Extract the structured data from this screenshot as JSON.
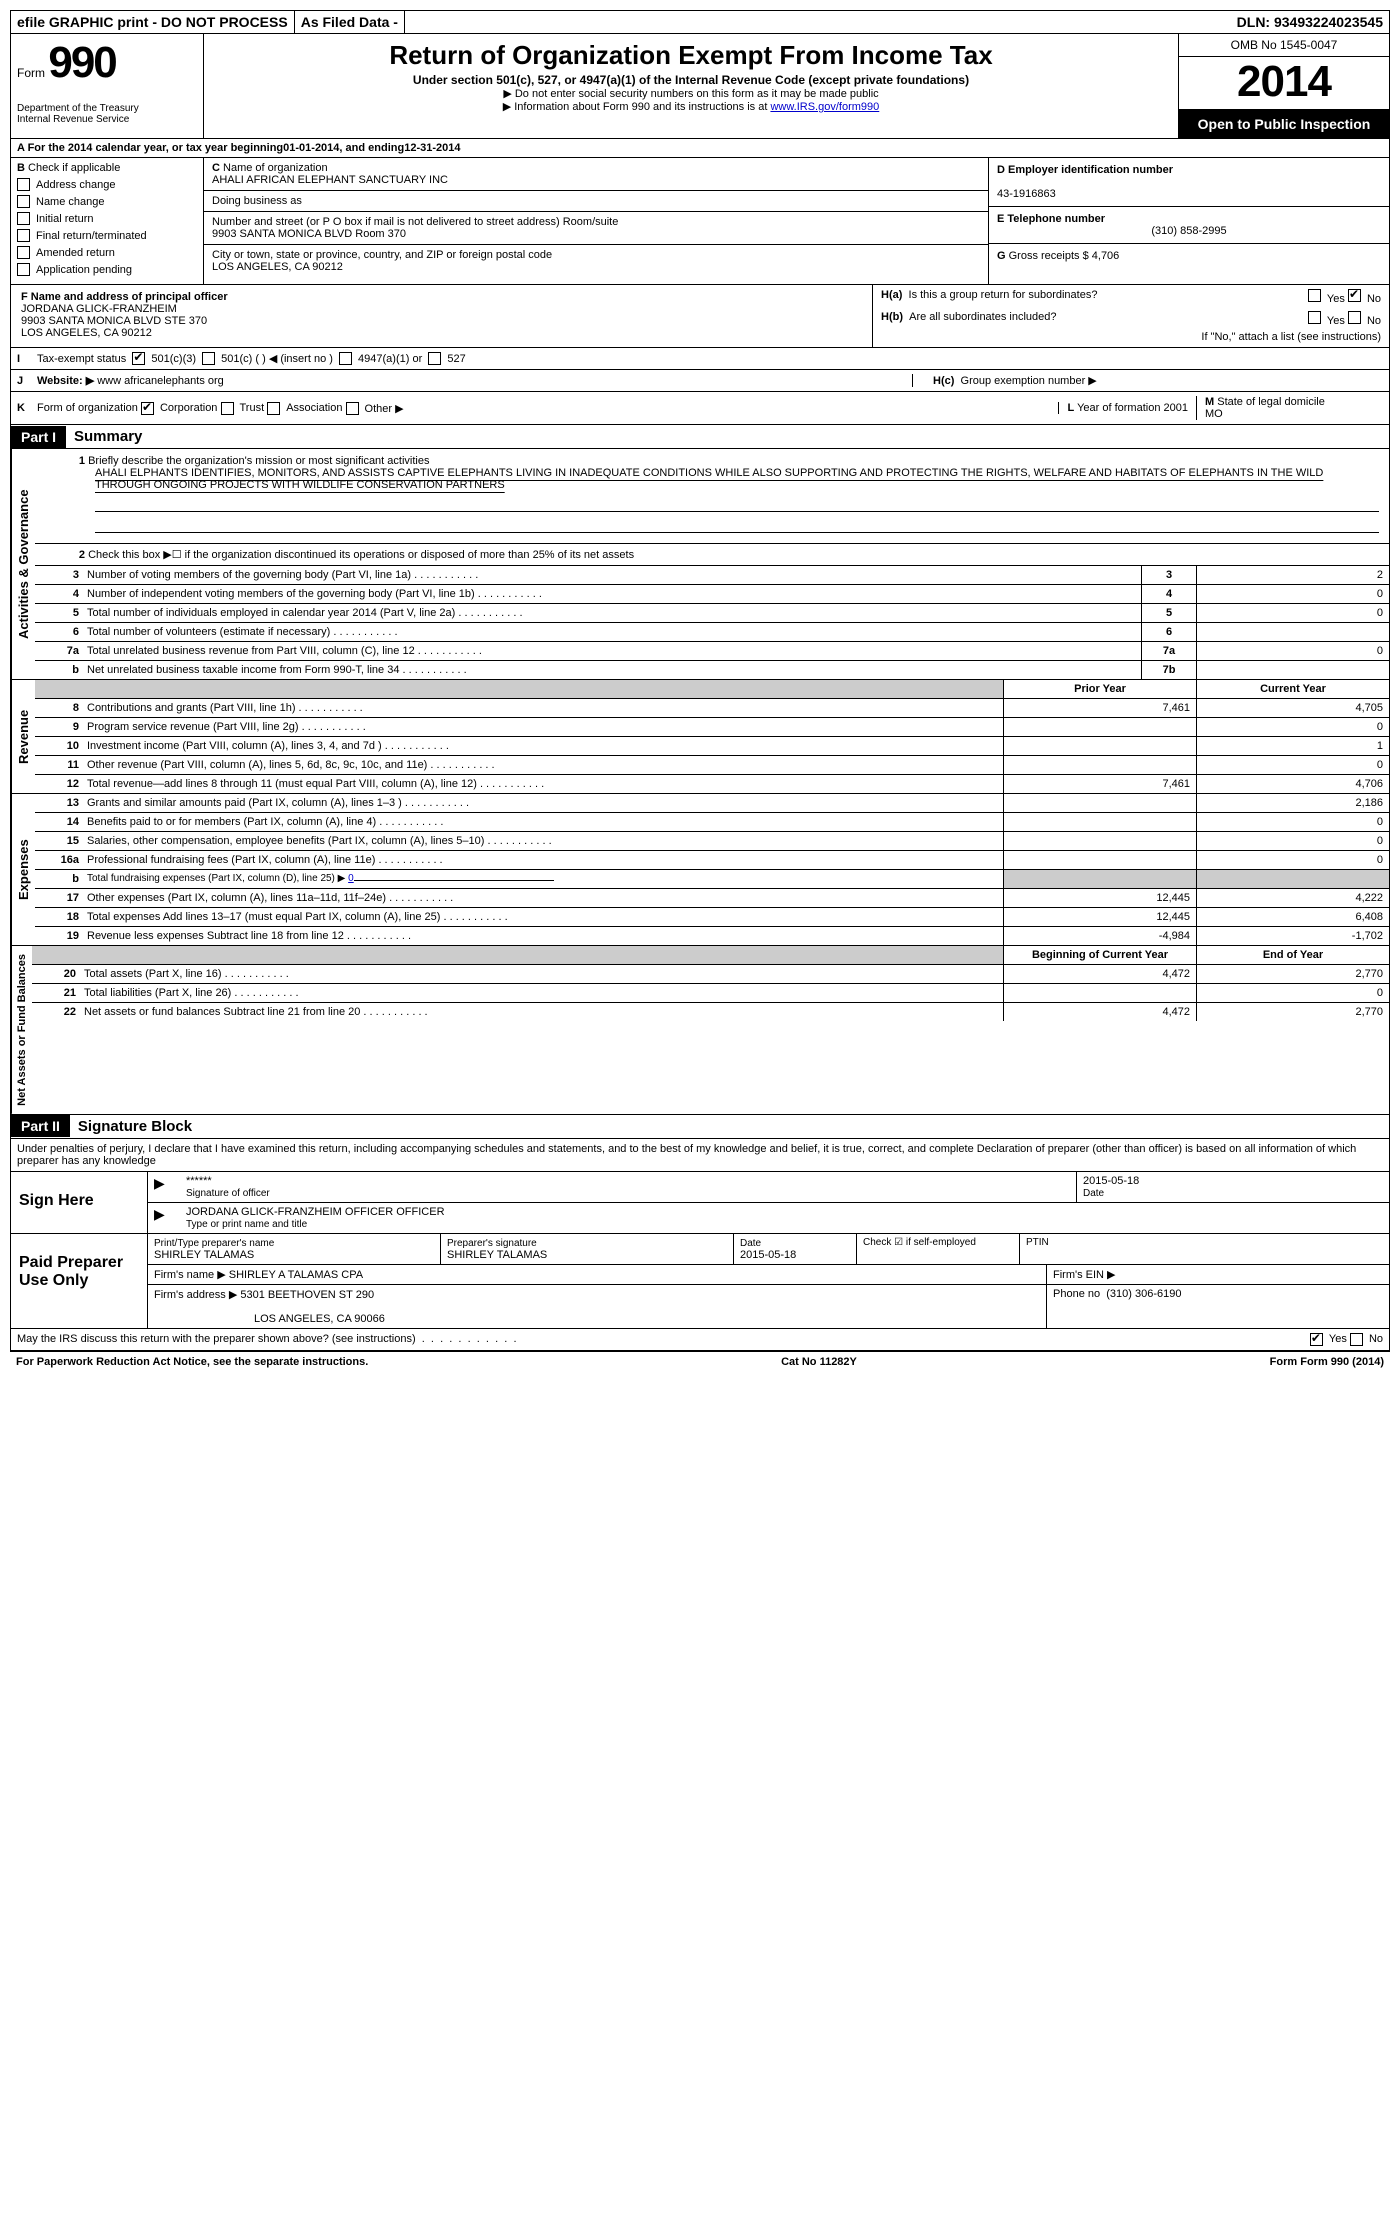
{
  "top_bar": {
    "efile": "efile GRAPHIC print - DO NOT PROCESS",
    "filed": "As Filed Data -",
    "dln": "DLN: 93493224023545"
  },
  "header": {
    "form_label": "Form",
    "form_num": "990",
    "dept1": "Department of the Treasury",
    "dept2": "Internal Revenue Service",
    "title": "Return of Organization Exempt From Income Tax",
    "subtitle": "Under section 501(c), 527, or 4947(a)(1) of the Internal Revenue Code (except private foundations)",
    "note1": "▶ Do not enter social security numbers on this form as it may be made public",
    "note2_pre": "▶ Information about Form 990 and its instructions is at ",
    "note2_link": "www.IRS.gov/form990",
    "omb": "OMB No 1545-0047",
    "year": "2014",
    "inspection": "Open to Public Inspection"
  },
  "row_a": {
    "label": "A For the 2014 calendar year, or tax year beginning ",
    "begin": "01-01-2014",
    "mid": " , and ending ",
    "end": "12-31-2014"
  },
  "section_b": {
    "label": "B",
    "check_label": "Check if applicable",
    "address_change": "Address change",
    "name_change": "Name change",
    "initial_return": "Initial return",
    "final_return": "Final return/terminated",
    "amended": "Amended return",
    "app_pending": "Application pending"
  },
  "section_c": {
    "label": "C",
    "name_label": "Name of organization",
    "name": "AHALI AFRICAN ELEPHANT SANCTUARY INC",
    "dba_label": "Doing business as",
    "street_label": "Number and street (or P O  box if mail is not delivered to street address) Room/suite",
    "street": "9903 SANTA MONICA BLVD Room 370",
    "city_label": "City or town, state or province, country, and ZIP or foreign postal code",
    "city": "LOS ANGELES, CA  90212"
  },
  "section_d": {
    "label": "D Employer identification number",
    "ein": "43-1916863"
  },
  "section_e": {
    "label": "E Telephone number",
    "phone": "(310) 858-2995"
  },
  "section_g": {
    "label": "G",
    "text": "Gross receipts $ 4,706"
  },
  "officer": {
    "label": "F   Name and address of principal officer",
    "name": "JORDANA GLICK-FRANZHEIM",
    "addr1": "9903 SANTA MONICA BLVD STE 370",
    "addr2": "LOS ANGELES, CA  90212"
  },
  "h": {
    "a_label": "H(a)",
    "a_text": "Is this a group return for subordinates?",
    "b_label": "H(b)",
    "b_text": "Are all subordinates included?",
    "b_note": "If \"No,\" attach a list  (see instructions)",
    "c_label": "H(c)",
    "c_text": "Group exemption number ▶",
    "yes": "Yes",
    "no": "No"
  },
  "section_i": {
    "label": "I",
    "text": "Tax-exempt status",
    "opt1": "501(c)(3)",
    "opt2": "501(c) (   ) ◀ (insert no )",
    "opt3": "4947(a)(1) or",
    "opt4": "527"
  },
  "section_j": {
    "label": "J",
    "text": "Website: ▶",
    "value": "www africanelephants org"
  },
  "section_k": {
    "label": "K",
    "text": "Form of organization",
    "corp": "Corporation",
    "trust": "Trust",
    "assoc": "Association",
    "other": "Other ▶"
  },
  "section_l": {
    "label": "L",
    "text": "Year of formation",
    "value": "2001"
  },
  "section_m": {
    "label": "M",
    "text": "State of legal domicile",
    "value": "MO"
  },
  "part1": {
    "header": "Part I",
    "title": "Summary",
    "q1_label": "1",
    "q1_text": "Briefly describe the organization's mission or most significant activities",
    "q1_value": "AHALI ELPHANTS IDENTIFIES, MONITORS, AND ASSISTS CAPTIVE ELEPHANTS LIVING IN INADEQUATE CONDITIONS WHILE ALSO SUPPORTING AND PROTECTING THE RIGHTS, WELFARE AND HABITATS OF ELEPHANTS IN THE WILD THROUGH ONGOING PROJECTS WITH WILDLIFE CONSERVATION PARTNERS",
    "q2_label": "2",
    "q2_text": "Check this box ▶☐ if the organization discontinued its operations or disposed of more than 25% of its net assets",
    "labels": {
      "activities": "Activities & Governance",
      "revenue": "Revenue",
      "expenses": "Expenses",
      "netassets": "Net Assets or Fund Balances"
    },
    "lines_gov": [
      {
        "n": "3",
        "t": "Number of voting members of the governing body (Part VI, line 1a)",
        "box": "3",
        "v": "2"
      },
      {
        "n": "4",
        "t": "Number of independent voting members of the governing body (Part VI, line 1b)",
        "box": "4",
        "v": "0"
      },
      {
        "n": "5",
        "t": "Total number of individuals employed in calendar year 2014 (Part V, line 2a)",
        "box": "5",
        "v": "0"
      },
      {
        "n": "6",
        "t": "Total number of volunteers (estimate if necessary)",
        "box": "6",
        "v": ""
      },
      {
        "n": "7a",
        "t": "Total unrelated business revenue from Part VIII, column (C), line 12",
        "box": "7a",
        "v": "0"
      },
      {
        "n": "b",
        "t": "Net unrelated business taxable income from Form 990-T, line 34",
        "box": "7b",
        "v": ""
      }
    ],
    "lines_rev_header": {
      "prior": "Prior Year",
      "current": "Current Year"
    },
    "lines_rev": [
      {
        "n": "8",
        "t": "Contributions and grants (Part VIII, line 1h)",
        "p": "7,461",
        "c": "4,705"
      },
      {
        "n": "9",
        "t": "Program service revenue (Part VIII, line 2g)",
        "p": "",
        "c": "0"
      },
      {
        "n": "10",
        "t": "Investment income (Part VIII, column (A), lines 3, 4, and 7d )",
        "p": "",
        "c": "1"
      },
      {
        "n": "11",
        "t": "Other revenue (Part VIII, column (A), lines 5, 6d, 8c, 9c, 10c, and 11e)",
        "p": "",
        "c": "0"
      },
      {
        "n": "12",
        "t": "Total revenue—add lines 8 through 11 (must equal Part VIII, column (A), line 12)",
        "p": "7,461",
        "c": "4,706"
      }
    ],
    "lines_exp": [
      {
        "n": "13",
        "t": "Grants and similar amounts paid (Part IX, column (A), lines 1–3 )",
        "p": "",
        "c": "2,186"
      },
      {
        "n": "14",
        "t": "Benefits paid to or for members (Part IX, column (A), line 4)",
        "p": "",
        "c": "0"
      },
      {
        "n": "15",
        "t": "Salaries, other compensation, employee benefits (Part IX, column (A), lines 5–10)",
        "p": "",
        "c": "0"
      },
      {
        "n": "16a",
        "t": "Professional fundraising fees (Part IX, column (A), line 11e)",
        "p": "",
        "c": "0"
      },
      {
        "n": "b",
        "t": "Total fundraising expenses (Part IX, column (D), line 25) ▶",
        "p": "shaded",
        "c": "shaded",
        "fundraising": "0"
      },
      {
        "n": "17",
        "t": "Other expenses (Part IX, column (A), lines 11a–11d, 11f–24e)",
        "p": "12,445",
        "c": "4,222"
      },
      {
        "n": "18",
        "t": "Total expenses  Add lines 13–17 (must equal Part IX, column (A), line 25)",
        "p": "12,445",
        "c": "6,408"
      },
      {
        "n": "19",
        "t": "Revenue less expenses  Subtract line 18 from line 12",
        "p": "-4,984",
        "c": "-1,702"
      }
    ],
    "lines_na_header": {
      "begin": "Beginning of Current Year",
      "end": "End of Year"
    },
    "lines_na": [
      {
        "n": "20",
        "t": "Total assets (Part X, line 16)",
        "p": "4,472",
        "c": "2,770"
      },
      {
        "n": "21",
        "t": "Total liabilities (Part X, line 26)",
        "p": "",
        "c": "0"
      },
      {
        "n": "22",
        "t": "Net assets or fund balances  Subtract line 21 from line 20",
        "p": "4,472",
        "c": "2,770"
      }
    ]
  },
  "part2": {
    "header": "Part II",
    "title": "Signature Block",
    "declaration": "Under penalties of perjury, I declare that I have examined this return, including accompanying schedules and statements, and to the best of my knowledge and belief, it is true, correct, and complete  Declaration of preparer (other than officer) is based on all information of which preparer has any knowledge",
    "sign_here": "Sign Here",
    "sig_stars": "******",
    "sig_date": "2015-05-18",
    "sig_officer_label": "Signature of officer",
    "date_label": "Date",
    "officer_name": "JORDANA GLICK-FRANZHEIM OFFICER OFFICER",
    "type_label": "Type or print name and title",
    "paid_prep": "Paid Preparer Use Only",
    "prep_name_label": "Print/Type preparer's name",
    "prep_name": "SHIRLEY TALAMAS",
    "prep_sig_label": "Preparer's signature",
    "prep_sig": "SHIRLEY TALAMAS",
    "prep_date_label": "Date",
    "prep_date": "2015-05-18",
    "check_if": "Check ☑ if self-employed",
    "ptin": "PTIN",
    "firm_name_label": "Firm's name    ▶",
    "firm_name": "SHIRLEY A TALAMAS CPA",
    "firm_ein_label": "Firm's EIN ▶",
    "firm_addr_label": "Firm's address ▶",
    "firm_addr1": "5301 BEETHOVEN ST 290",
    "firm_addr2": "LOS ANGELES, CA  90066",
    "phone_label": "Phone no",
    "phone": "(310) 306-6190",
    "discuss": "May the IRS discuss this return with the preparer shown above? (see instructions)",
    "yes": "Yes",
    "no": "No"
  },
  "footer": {
    "pra": "For Paperwork Reduction Act Notice, see the separate instructions.",
    "cat": "Cat No  11282Y",
    "form": "Form 990 (2014)"
  }
}
